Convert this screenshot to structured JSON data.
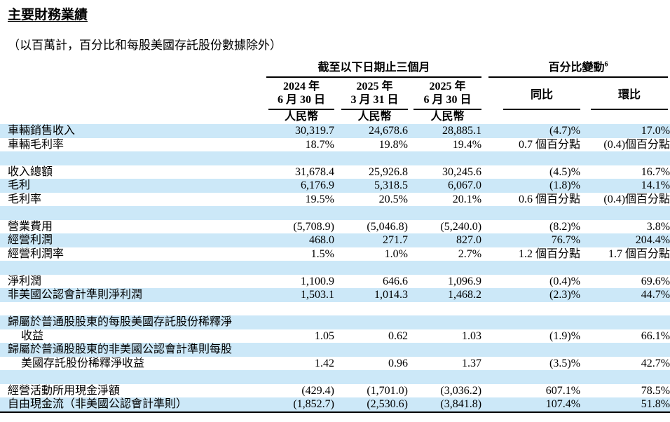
{
  "page": {
    "title": "主要財務業績",
    "subtitle": "（以百萬計，百分比和每股美國存託股份數據除外）"
  },
  "table": {
    "period_header": "截至以下日期止三個月",
    "change_header": "百分比變動",
    "change_header_footnote": "6",
    "period_columns": [
      {
        "line1": "2024 年",
        "line2": "6 月 30 日",
        "currency": "人民幣"
      },
      {
        "line1": "2025 年",
        "line2": "3 月 31 日",
        "currency": "人民幣"
      },
      {
        "line1": "2025 年",
        "line2": "6 月 30 日",
        "currency": "人民幣"
      }
    ],
    "change_columns": [
      {
        "label": "同比"
      },
      {
        "label": "環比"
      }
    ],
    "colors": {
      "row_shade": "#cce8f8"
    },
    "rows": [
      {
        "label": "車輛銷售收入",
        "values": [
          "30,319.7",
          "24,678.6",
          "28,885.1",
          "(4.7)%",
          "17.0%"
        ]
      },
      {
        "label": "車輛毛利率",
        "values": [
          "18.7%",
          "19.8%",
          "19.4%",
          "0.7 個百分點",
          "(0.4)個百分點"
        ]
      },
      {
        "blank": true
      },
      {
        "label": "收入總額",
        "values": [
          "31,678.4",
          "25,926.8",
          "30,245.6",
          "(4.5)%",
          "16.7%"
        ]
      },
      {
        "label": "毛利",
        "values": [
          "6,176.9",
          "5,318.5",
          "6,067.0",
          "(1.8)%",
          "14.1%"
        ]
      },
      {
        "label": "毛利率",
        "values": [
          "19.5%",
          "20.5%",
          "20.1%",
          "0.6 個百分點",
          "(0.4)個百分點"
        ]
      },
      {
        "blank": true
      },
      {
        "label": "營業費用",
        "values": [
          "(5,708.9)",
          "(5,046.8)",
          "(5,240.0)",
          "(8.2)%",
          "3.8%"
        ]
      },
      {
        "label": "經營利潤",
        "values": [
          "468.0",
          "271.7",
          "827.0",
          "76.7%",
          "204.4%"
        ]
      },
      {
        "label": "經營利潤率",
        "values": [
          "1.5%",
          "1.0%",
          "2.7%",
          "1.2 個百分點",
          "1.7 個百分點"
        ]
      },
      {
        "blank": true
      },
      {
        "label": "淨利潤",
        "values": [
          "1,100.9",
          "646.6",
          "1,096.9",
          "(0.4)%",
          "69.6%"
        ]
      },
      {
        "label": "非美國公認會計準則淨利潤",
        "values": [
          "1,503.1",
          "1,014.3",
          "1,468.2",
          "(2.3)%",
          "44.7%"
        ]
      },
      {
        "blank": true
      },
      {
        "label": "歸屬於普通股股東的每股美國存託股份稀釋淨",
        "values": [
          "",
          "",
          "",
          "",
          ""
        ]
      },
      {
        "label": "收益",
        "indent": true,
        "values": [
          "1.05",
          "0.62",
          "1.03",
          "(1.9)%",
          "66.1%"
        ]
      },
      {
        "label": "歸屬於普通股股東的非美國公認會計準則每股",
        "values": [
          "",
          "",
          "",
          "",
          ""
        ]
      },
      {
        "label": "美國存託股份稀釋淨收益",
        "indent": true,
        "values": [
          "1.42",
          "0.96",
          "1.37",
          "(3.5)%",
          "42.7%"
        ]
      },
      {
        "blank": true
      },
      {
        "label": "經營活動所用現金淨額",
        "values": [
          "(429.4)",
          "(1,701.0)",
          "(3,036.2)",
          "607.1%",
          "78.5%"
        ]
      },
      {
        "label": "自由現金流（非美國公認會計準則）",
        "values": [
          "(1,852.7)",
          "(2,530.6)",
          "(3,841.8)",
          "107.4%",
          "51.8%"
        ]
      }
    ]
  }
}
